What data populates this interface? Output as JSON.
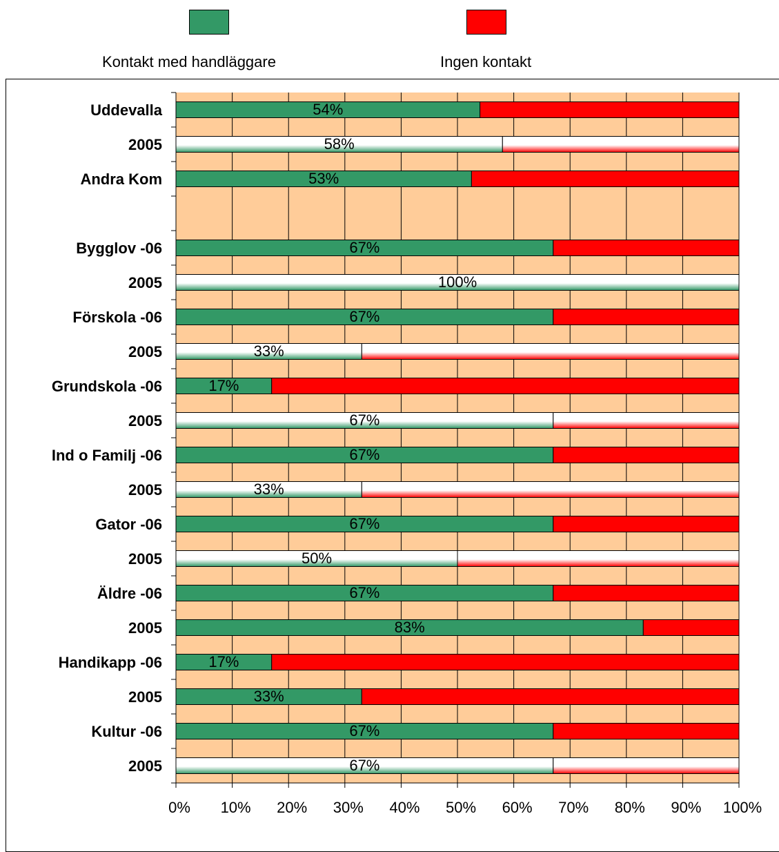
{
  "legend": {
    "items": [
      {
        "label": "Kontakt med handläggare",
        "color": "#339966"
      },
      {
        "label": "Ingen kontakt",
        "color": "#ff0000"
      }
    ]
  },
  "chart_data": {
    "type": "bar",
    "orientation": "horizontal",
    "stacked": "percent",
    "plot_background": "#ffcc99",
    "grid": true,
    "legend_position": "top",
    "xlim": [
      0,
      100
    ],
    "x_ticks": [
      "0%",
      "10%",
      "20%",
      "30%",
      "40%",
      "50%",
      "60%",
      "70%",
      "80%",
      "90%",
      "100%"
    ],
    "categories": [
      "Uddevalla",
      "2005",
      "Andra Kom",
      "",
      "Bygglov  -06",
      "2005",
      "Förskola  -06",
      "2005",
      "Grundskola  -06",
      "2005",
      "Ind o Familj  -06",
      "2005",
      "Gator  -06",
      "2005",
      "Äldre  -06",
      "2005",
      "Handikapp  -06",
      "2005",
      "Kultur  -06",
      "2005"
    ],
    "bar_style": [
      "solid",
      "gradient",
      "solid",
      "none",
      "solid",
      "gradient",
      "solid",
      "gradient",
      "solid",
      "gradient",
      "solid",
      "gradient",
      "solid",
      "gradient",
      "solid",
      "solid",
      "solid",
      "solid",
      "solid",
      "gradient"
    ],
    "series": [
      {
        "name": "Kontakt med handläggare",
        "color": "#339966",
        "values": [
          54,
          58,
          52.5,
          null,
          67,
          100,
          67,
          33,
          17,
          67,
          67,
          33,
          67,
          50,
          67,
          83,
          17,
          33,
          67,
          67
        ],
        "labels": [
          "54%",
          "58%",
          "53%",
          "",
          "67%",
          "100%",
          "67%",
          "33%",
          "17%",
          "67%",
          "67%",
          "33%",
          "67%",
          "50%",
          "67%",
          "83%",
          "17%",
          "33%",
          "67%",
          "67%"
        ]
      },
      {
        "name": "Ingen kontakt",
        "color": "#ff0000",
        "values": [
          46,
          42,
          47.5,
          null,
          33,
          0,
          33,
          67,
          83,
          33,
          33,
          67,
          33,
          50,
          33,
          17,
          83,
          67,
          33,
          33
        ]
      }
    ]
  }
}
